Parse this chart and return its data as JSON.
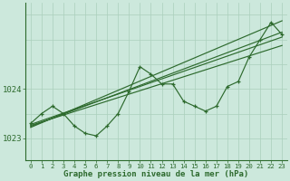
{
  "title": "Graphe pression niveau de la mer (hPa)",
  "hours": [
    0,
    1,
    2,
    3,
    4,
    5,
    6,
    7,
    8,
    9,
    10,
    11,
    12,
    13,
    14,
    15,
    16,
    17,
    18,
    19,
    20,
    21,
    22,
    23
  ],
  "pressure": [
    1023.3,
    1023.5,
    1023.65,
    1023.5,
    1023.25,
    1023.1,
    1023.05,
    1023.25,
    1023.5,
    1023.95,
    1024.45,
    1024.3,
    1024.1,
    1024.1,
    1023.75,
    1023.65,
    1023.55,
    1023.65,
    1024.05,
    1024.15,
    1024.65,
    1025.0,
    1025.35,
    1025.1
  ],
  "trend_lines": [
    [
      1023.22,
      1025.38
    ],
    [
      1023.28,
      1025.05
    ],
    [
      1023.24,
      1025.15
    ],
    [
      1023.26,
      1024.88
    ]
  ],
  "bg_color": "#cce8dc",
  "line_color": "#2d6a2d",
  "grid_color": "#aacfbb",
  "ylim": [
    1022.55,
    1025.75
  ],
  "ytick_vals": [
    1023,
    1024
  ],
  "xlim": [
    -0.5,
    23.5
  ]
}
